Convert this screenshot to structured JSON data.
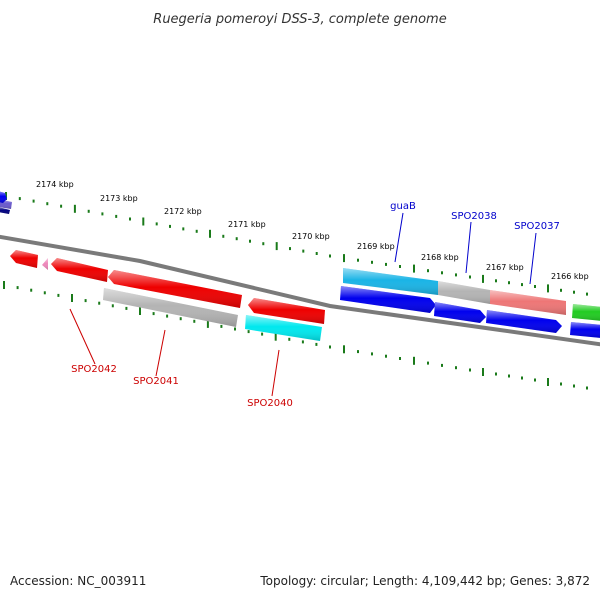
{
  "title": "Ruegeria pomeroyi DSS-3, complete genome",
  "footer": {
    "accession": "Accession: NC_003911",
    "summary": "Topology: circular; Length: 4,109,442 bp; Genes: 3,872"
  },
  "colors": {
    "backbone": "#7a7a7a",
    "tick": "#1a7a1a",
    "label_above": "#0000cc",
    "label_below": "#cc0000",
    "gene_red": "#ee0000",
    "gene_blue": "#0000ee",
    "gene_cyan": "#00e8ee",
    "gene_lightblue": "#1ab4e6",
    "gene_grey": "#b4b4b4",
    "gene_salmon": "#ee7676",
    "gene_green": "#22cc22",
    "gene_pink": "#ee88bb",
    "gene_purple": "#6a5acd",
    "gene_navy": "#000080"
  },
  "kbp_labels": [
    "2174 kbp",
    "2173 kbp",
    "2172 kbp",
    "2171 kbp",
    "2170 kbp",
    "2169 kbp",
    "2168 kbp",
    "2167 kbp",
    "2166 kbp"
  ],
  "gene_labels_above": [
    "guaB",
    "SPO2038",
    "SPO2037"
  ],
  "gene_labels_below": [
    "SPO2042",
    "SPO2041",
    "SPO2040"
  ]
}
